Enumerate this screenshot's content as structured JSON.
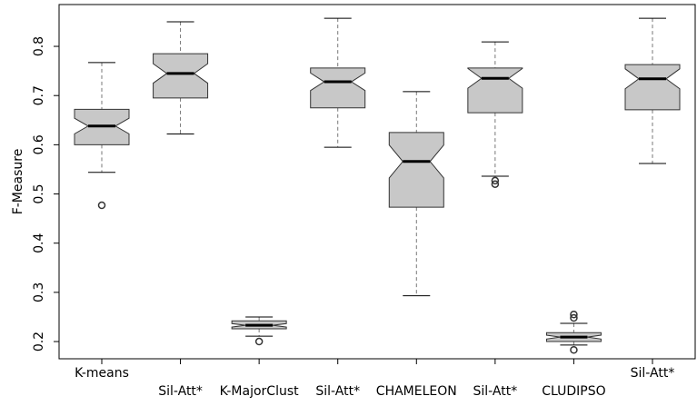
{
  "chart_data": {
    "type": "box",
    "ylabel": "F-Measure",
    "categories": [
      "K-means",
      "Sil-Att*",
      "K-MajorClust",
      "Sil-Att*",
      "CHAMELEON",
      "Sil-Att*",
      "CLUDIPSO",
      "Sil-Att*"
    ],
    "color": "#c8c8c8",
    "boxes": [
      {
        "whisker_low": 0.544,
        "q1": 0.6,
        "median": 0.638,
        "q3": 0.672,
        "whisker_high": 0.767,
        "outliers": [
          0.477
        ]
      },
      {
        "whisker_low": 0.622,
        "q1": 0.695,
        "median": 0.745,
        "q3": 0.785,
        "whisker_high": 0.85,
        "outliers": []
      },
      {
        "whisker_low": 0.211,
        "q1": 0.226,
        "median": 0.233,
        "q3": 0.242,
        "whisker_high": 0.25,
        "outliers": [
          0.2
        ]
      },
      {
        "whisker_low": 0.595,
        "q1": 0.675,
        "median": 0.728,
        "q3": 0.756,
        "whisker_high": 0.857,
        "outliers": []
      },
      {
        "whisker_low": 0.293,
        "q1": 0.473,
        "median": 0.566,
        "q3": 0.625,
        "whisker_high": 0.708,
        "outliers": []
      },
      {
        "whisker_low": 0.536,
        "q1": 0.665,
        "median": 0.735,
        "q3": 0.756,
        "whisker_high": 0.809,
        "outliers": [
          0.527,
          0.52
        ]
      },
      {
        "whisker_low": 0.193,
        "q1": 0.2,
        "median": 0.209,
        "q3": 0.218,
        "whisker_high": 0.237,
        "outliers": [
          0.255,
          0.248,
          0.183
        ]
      },
      {
        "whisker_low": 0.562,
        "q1": 0.671,
        "median": 0.734,
        "q3": 0.763,
        "whisker_high": 0.857,
        "outliers": []
      }
    ],
    "ylim": [
      0.165,
      0.885
    ],
    "yticks": [
      0.2,
      0.3,
      0.4,
      0.5,
      0.6,
      0.7,
      0.8
    ]
  }
}
